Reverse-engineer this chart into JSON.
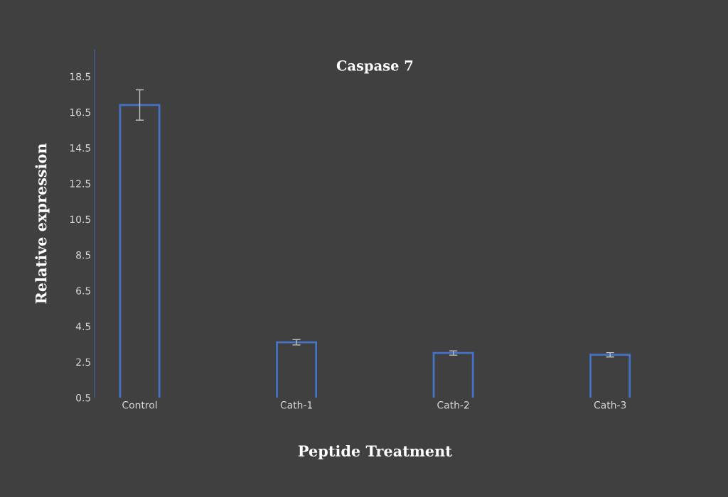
{
  "chart_data": {
    "type": "bar",
    "title": "Caspase 7",
    "xlabel": "Peptide Treatment",
    "ylabel": "Relative expression",
    "categories": [
      "Control",
      "Cath-1",
      "Cath-2",
      "Cath-3"
    ],
    "values": [
      16.9,
      3.6,
      3.0,
      2.9
    ],
    "errors": [
      0.85,
      0.15,
      0.12,
      0.12
    ],
    "color": "#4472c4",
    "ylim": [
      0.5,
      20
    ],
    "yticks": [
      0.5,
      2.5,
      4.5,
      6.5,
      8.5,
      10.5,
      12.5,
      14.5,
      16.5,
      18.5
    ],
    "grid": false
  }
}
